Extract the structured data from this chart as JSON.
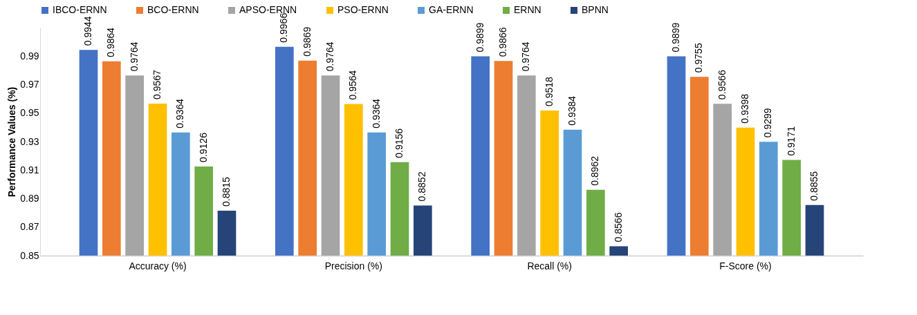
{
  "chart_data": {
    "type": "bar",
    "ylabel": "Performance Values (%)",
    "categories": [
      "Accuracy (%)",
      "Precision (%)",
      "Recall (%)",
      "F-Score (%)"
    ],
    "series": [
      {
        "name": "IBCO-ERNN",
        "color": "#4472c4",
        "values": [
          0.9944,
          0.9966,
          0.9899,
          0.9899
        ]
      },
      {
        "name": "BCO-ERNN",
        "color": "#ed7d31",
        "values": [
          0.9864,
          0.9869,
          0.9866,
          0.9755
        ]
      },
      {
        "name": "APSO-ERNN",
        "color": "#a5a5a5",
        "values": [
          0.9764,
          0.9764,
          0.9764,
          0.9566
        ]
      },
      {
        "name": "PSO-ERNN",
        "color": "#ffc000",
        "values": [
          0.9567,
          0.9564,
          0.9518,
          0.9398
        ]
      },
      {
        "name": "GA-ERNN",
        "color": "#5b9bd5",
        "values": [
          0.9364,
          0.9364,
          0.9384,
          0.9299
        ]
      },
      {
        "name": "ERNN",
        "color": "#70ad47",
        "values": [
          0.9126,
          0.9156,
          0.8962,
          0.9171
        ]
      },
      {
        "name": "BPNN",
        "color": "#264478",
        "values": [
          0.8815,
          0.8852,
          0.8566,
          0.8855
        ]
      }
    ],
    "ylim": [
      0.85,
      1.01
    ],
    "yticks": [
      0.85,
      0.87,
      0.89,
      0.91,
      0.93,
      0.95,
      0.97,
      0.99
    ],
    "data_labels": true,
    "legend": "top",
    "grid": false
  }
}
